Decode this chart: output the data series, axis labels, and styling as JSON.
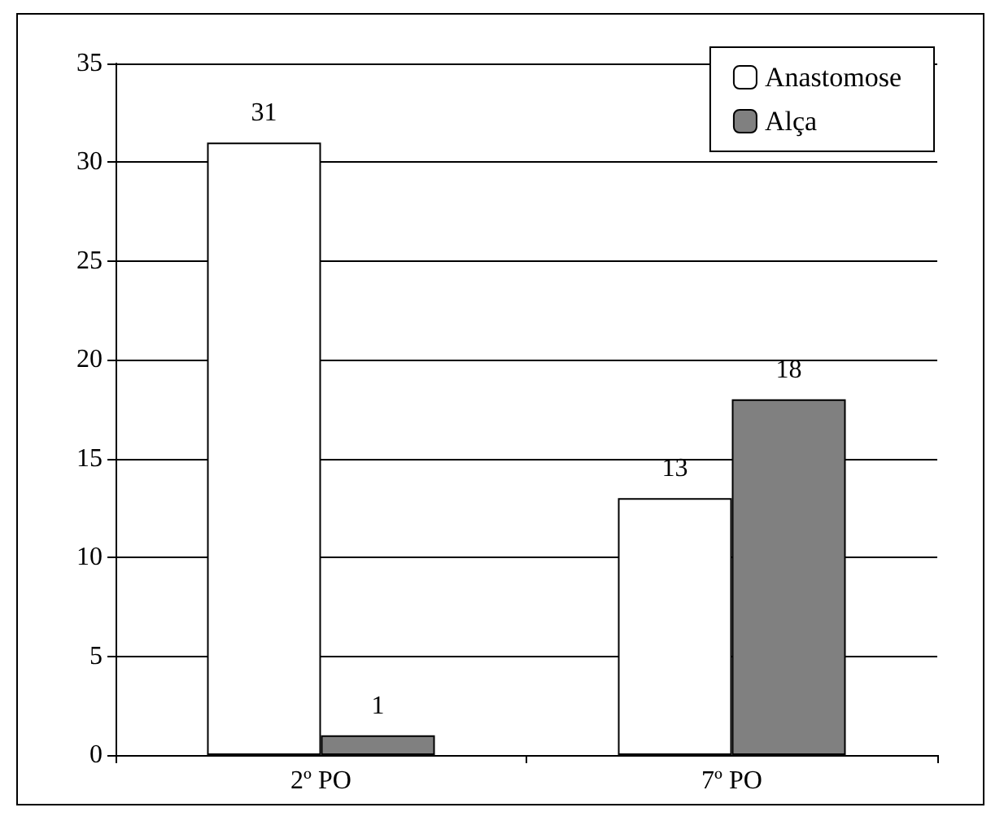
{
  "chart_data": {
    "type": "bar",
    "categories": [
      "2º PO",
      "7º PO"
    ],
    "series": [
      {
        "name": "Anastomose",
        "color": "#ffffff",
        "values": [
          31,
          13
        ]
      },
      {
        "name": "Alça",
        "color": "#808080",
        "values": [
          1,
          18
        ]
      }
    ],
    "ylim": [
      0,
      35
    ],
    "yticks": [
      0,
      5,
      10,
      15,
      20,
      25,
      30,
      35
    ],
    "grid": "y",
    "legend": "top right",
    "data_labels": true
  }
}
